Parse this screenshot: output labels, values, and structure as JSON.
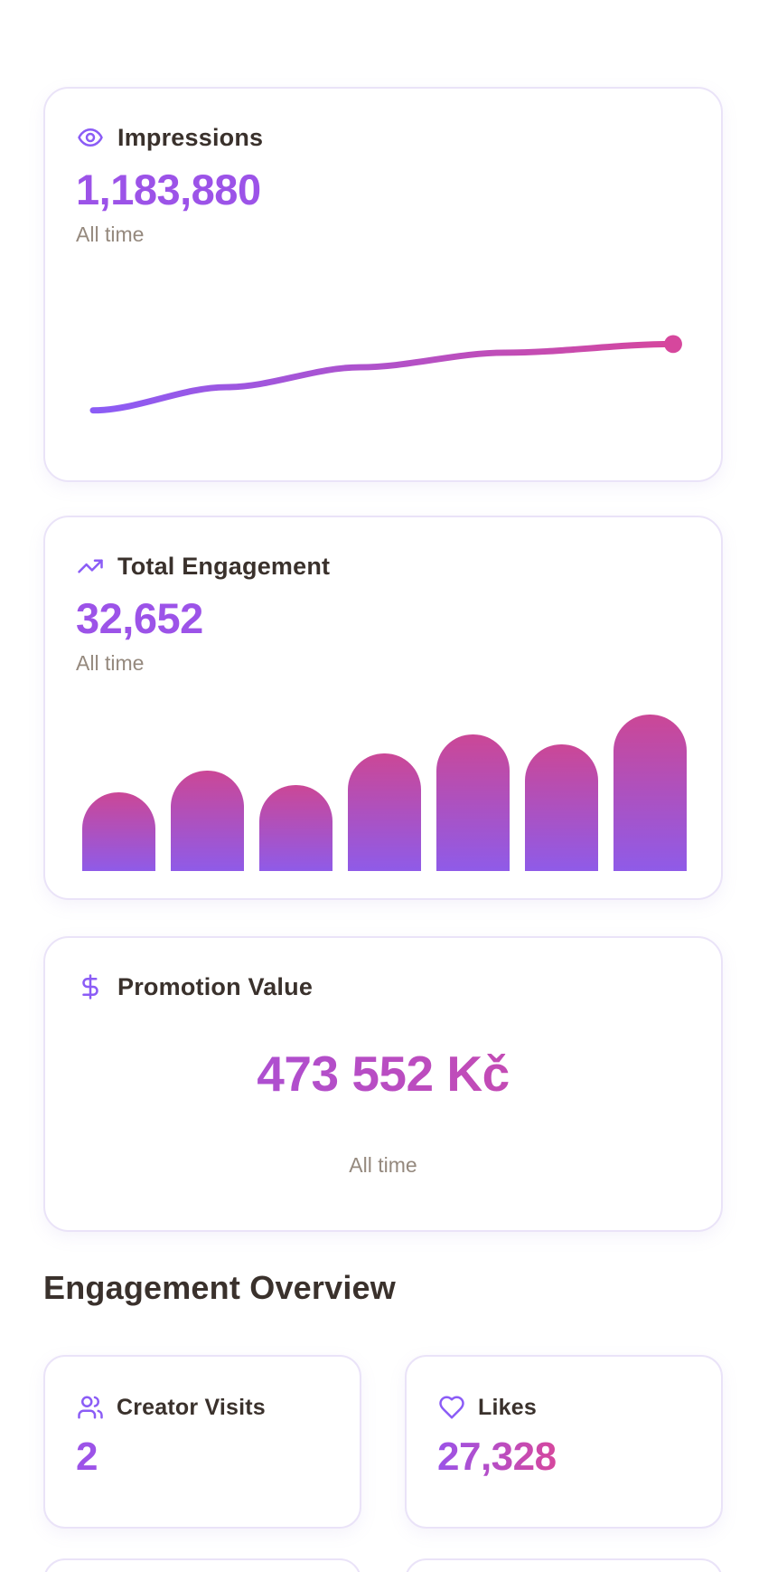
{
  "page": {
    "section_heading": "Engagement Overview"
  },
  "colors": {
    "accent_purple": "#9C53E8",
    "icon_purple": "#8B5CF6",
    "gradient_start": "#9B53E8",
    "gradient_end": "#D6479D",
    "line_start": "#8B5CF6",
    "line_end": "#D6479D",
    "bar_top": "#CB4796",
    "bar_bottom": "#8F5BE8",
    "title_text": "#3A312C",
    "subtitle_text": "#95897E",
    "card_border": "#EAE3F8",
    "page_bg": "#FFFFFF"
  },
  "cards": {
    "impressions": {
      "icon": "eye-icon",
      "title": "Impressions",
      "value": "1,183,880",
      "subtitle": "All time"
    },
    "total_engagement": {
      "icon": "trending-up-icon",
      "title": "Total Engagement",
      "value": "32,652",
      "subtitle": "All time"
    },
    "promotion_value": {
      "icon": "dollar-icon",
      "title": "Promotion Value",
      "value": "473 552 Kč",
      "subtitle": "All time"
    },
    "creator_visits": {
      "icon": "users-icon",
      "title": "Creator Visits",
      "value": "2"
    },
    "likes": {
      "icon": "heart-icon",
      "title": "Likes",
      "value": "27,328"
    }
  },
  "chart_data": [
    {
      "type": "line",
      "title": "Impressions — all-time trend sparkline",
      "series": [
        {
          "name": "Impressions",
          "points_normalized": [
            [
              0,
              0
            ],
            [
              0.23,
              0.35
            ],
            [
              0.46,
              0.65
            ],
            [
              0.71,
              0.87
            ],
            [
              1,
              1
            ]
          ]
        }
      ],
      "xlabel": "",
      "ylabel": "",
      "axes_visible": false,
      "grid": false,
      "legend": "none",
      "style": "smooth rising curve, gradient stroke purple-to-pink, round dot at right endpoint",
      "note": "no axis ticks or labels shown; y values are relative (0 = left end, 1 = right end)"
    },
    {
      "type": "bar",
      "title": "Total Engagement — unlabeled bar distribution",
      "bar_count": 7,
      "categories": [
        "",
        "",
        "",
        "",
        "",
        "",
        ""
      ],
      "values_relative": [
        0.5,
        0.64,
        0.55,
        0.75,
        0.87,
        0.81,
        1.0
      ],
      "xlabel": "",
      "ylabel": "",
      "axes_visible": false,
      "grid": false,
      "legend": "none",
      "style": "dome-topped bars, vertical gradient pink-to-purple",
      "note": "no axis ticks or labels shown; heights relative to tallest bar"
    }
  ]
}
